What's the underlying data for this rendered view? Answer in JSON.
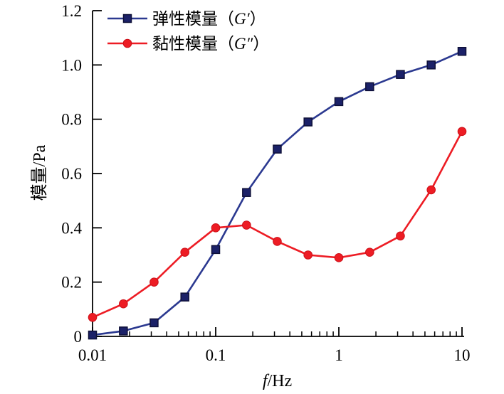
{
  "chart_data": {
    "type": "line",
    "title": "",
    "x_scale": "log",
    "xlabel": "f/Hz",
    "xlabel_italic": "f",
    "xlabel_rest": "/Hz",
    "ylabel": "模量/Pa",
    "xlim": [
      0.01,
      10
    ],
    "ylim": [
      0,
      1.2
    ],
    "grid": false,
    "legend_position": "top-left-inside",
    "x": [
      0.01,
      0.0178,
      0.0316,
      0.0562,
      0.1,
      0.178,
      0.316,
      0.562,
      1,
      1.78,
      3.16,
      5.62,
      10
    ],
    "series": [
      {
        "name": "弹性模量（G′）",
        "label_prefix": "弹性模量（",
        "symbol": "G′",
        "label_suffix": "）",
        "marker": "square",
        "line_color": "#2B3990",
        "marker_fill": "#1B2168",
        "marker_edge": "#0E1038",
        "values": [
          0.005,
          0.02,
          0.05,
          0.145,
          0.32,
          0.53,
          0.69,
          0.79,
          0.865,
          0.92,
          0.965,
          1.0,
          1.05
        ]
      },
      {
        "name": "黏性模量（G″）",
        "label_prefix": "黏性模量（",
        "symbol": "G″",
        "label_suffix": "）",
        "marker": "circle",
        "line_color": "#ED1C24",
        "marker_fill": "#ED1C24",
        "marker_edge": "#CC1018",
        "values": [
          0.07,
          0.12,
          0.2,
          0.31,
          0.4,
          0.41,
          0.35,
          0.3,
          0.29,
          0.31,
          0.37,
          0.54,
          0.755
        ]
      }
    ],
    "x_ticks": [
      {
        "value": 0.01,
        "label": "0.01"
      },
      {
        "value": 0.1,
        "label": "0.1"
      },
      {
        "value": 1,
        "label": "1"
      },
      {
        "value": 10,
        "label": "10"
      }
    ],
    "y_ticks": [
      {
        "value": 0,
        "label": "0"
      },
      {
        "value": 0.2,
        "label": "0.2"
      },
      {
        "value": 0.4,
        "label": "0.4"
      },
      {
        "value": 0.6,
        "label": "0.6"
      },
      {
        "value": 0.8,
        "label": "0.8"
      },
      {
        "value": 1.0,
        "label": "1.0"
      },
      {
        "value": 1.2,
        "label": "1.2"
      }
    ],
    "axis_color": "#000000"
  }
}
